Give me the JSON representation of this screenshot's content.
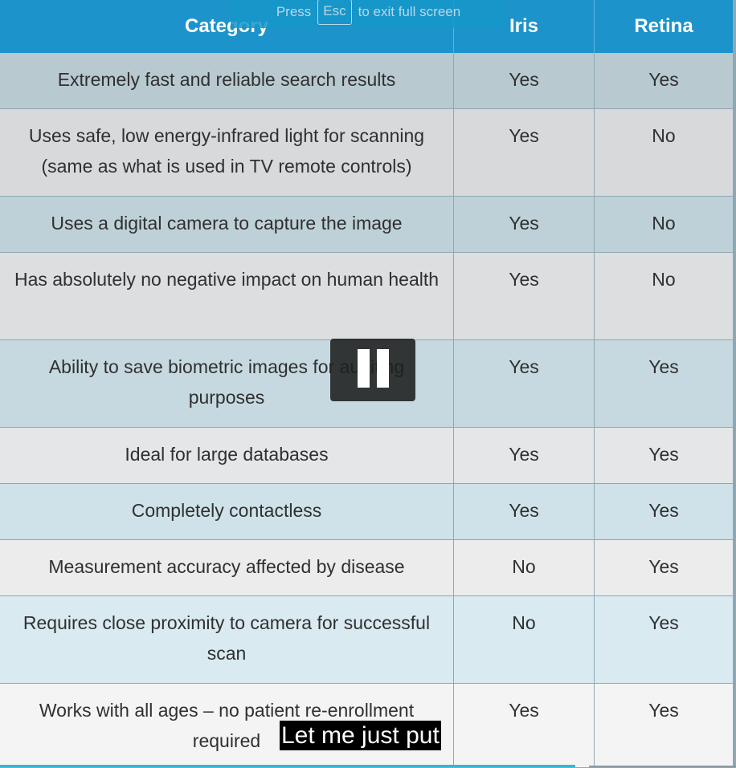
{
  "table": {
    "headers": [
      "Category",
      "Iris",
      "Retina"
    ],
    "rows": [
      {
        "category": "Extremely fast and reliable search results",
        "iris": "Yes",
        "retina": "Yes"
      },
      {
        "category": "Uses safe, low energy-infrared light for scanning (same as what is used in TV remote controls)",
        "iris": "Yes",
        "retina": "No"
      },
      {
        "category": "Uses a digital camera to capture the image",
        "iris": "Yes",
        "retina": "No"
      },
      {
        "category": "Has absolutely no negative impact on human health",
        "iris": "Yes",
        "retina": "No"
      },
      {
        "category": "Ability to save biometric images for auditing purposes",
        "iris": "Yes",
        "retina": "Yes"
      },
      {
        "category": "Ideal for large databases",
        "iris": "Yes",
        "retina": "Yes"
      },
      {
        "category": "Completely contactless",
        "iris": "Yes",
        "retina": "Yes"
      },
      {
        "category": "Measurement accuracy affected by disease",
        "iris": "No",
        "retina": "Yes"
      },
      {
        "category": "Requires close proximity to camera for successful scan",
        "iris": "No",
        "retina": "Yes"
      },
      {
        "category": "Works with all ages – no patient re-enrollment required",
        "iris": "Yes",
        "retina": "Yes"
      }
    ]
  },
  "fullscreen_banner": {
    "press": "Press",
    "key": "Esc",
    "rest": "to exit full screen"
  },
  "player": {
    "pause_icon": "pause-icon",
    "caption": "Let me just put"
  },
  "colors": {
    "header_bg": "#1d93cc",
    "header_text": "#ffffff",
    "accent_line": "#3bb3cf"
  }
}
